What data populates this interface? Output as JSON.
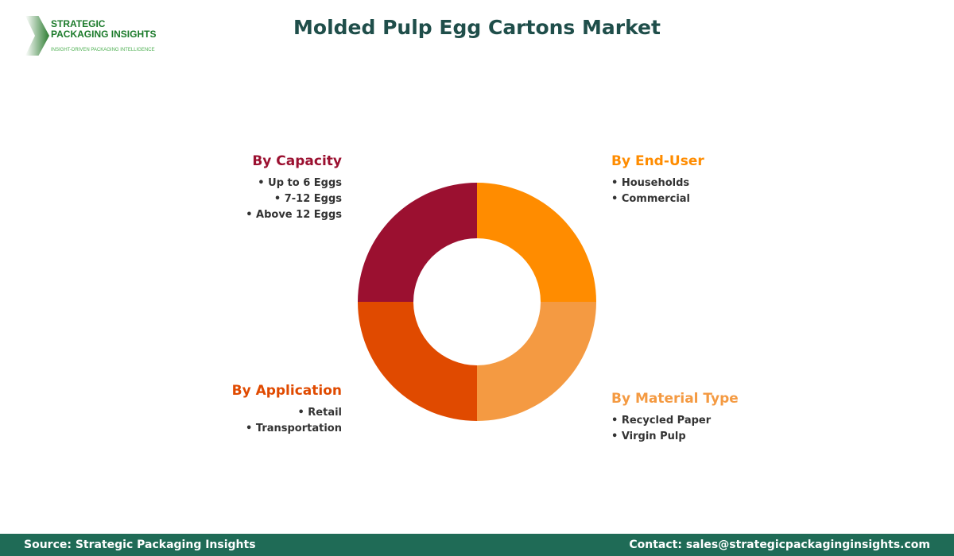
{
  "header": {
    "title": "Molded Pulp Egg Cartons Market"
  },
  "logo": {
    "line1": "STRATEGIC",
    "line2": "PACKAGING INSIGHTS",
    "tagline": "INSIGHT-DRIVEN PACKAGING INTELLIGENCE"
  },
  "segments": [
    {
      "title": "By Capacity",
      "color": "#9B1030",
      "items": [
        "• Up to 6 Eggs",
        "• 7-12 Eggs",
        "• Above 12 Eggs"
      ]
    },
    {
      "title": "By End-User",
      "color": "#FF8C00",
      "items": [
        "• Households",
        "• Commercial"
      ]
    },
    {
      "title": "By Application",
      "color": "#E04A00",
      "items": [
        "• Retail",
        "• Transportation"
      ]
    },
    {
      "title": "By Material Type",
      "color": "#F49A42",
      "items": [
        "• Recycled Paper",
        "• Virgin Pulp"
      ]
    }
  ],
  "footer": {
    "source": "Source: Strategic Packaging Insights",
    "contact": "Contact: sales@strategicpackaginginsights.com"
  }
}
